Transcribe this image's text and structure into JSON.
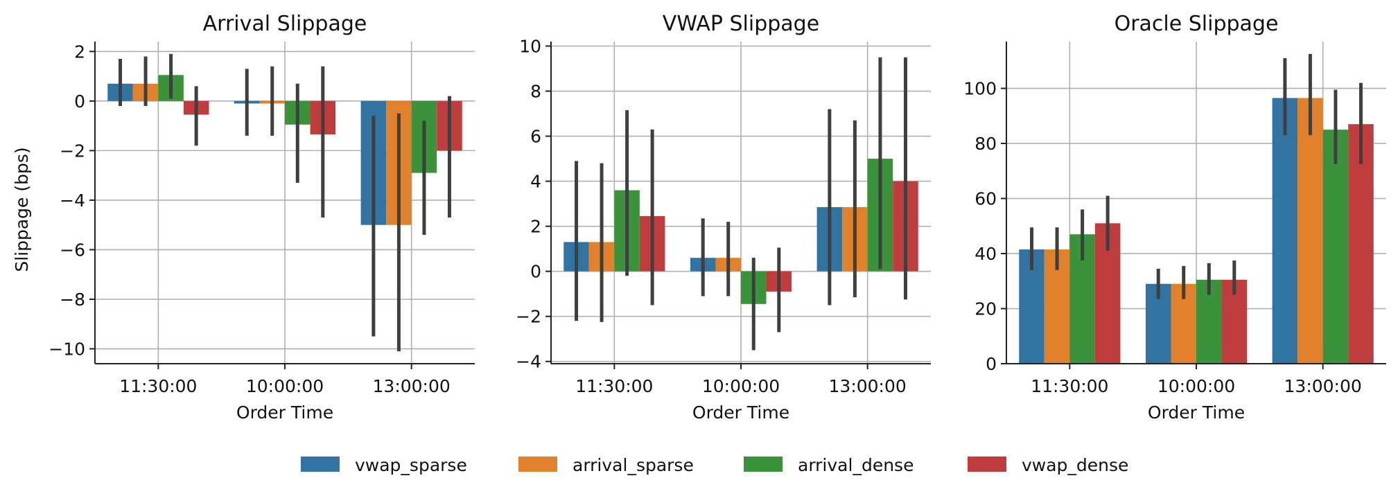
{
  "chart_data": [
    {
      "type": "bar",
      "title": "Arrival Slippage",
      "xlabel": "Order Time",
      "ylabel": "Slippage (bps)",
      "categories": [
        "11:30:00",
        "10:00:00",
        "13:00:00"
      ],
      "ylim": [
        -10.6,
        2.4
      ],
      "yticks": [
        2,
        0,
        -2,
        -4,
        -6,
        -8,
        -10
      ],
      "ytick_labels": [
        "2",
        "0",
        "−2",
        "−4",
        "−6",
        "−8",
        "−10"
      ],
      "grid": true,
      "series": [
        {
          "name": "vwap_sparse",
          "values": [
            0.7,
            -0.1,
            -5.0
          ],
          "err_low": [
            -0.2,
            -1.4,
            -9.5
          ],
          "err_high": [
            1.7,
            1.3,
            -0.6
          ]
        },
        {
          "name": "arrival_sparse",
          "values": [
            0.7,
            -0.1,
            -5.0
          ],
          "err_low": [
            -0.2,
            -1.4,
            -10.1
          ],
          "err_high": [
            1.8,
            1.4,
            -0.5
          ]
        },
        {
          "name": "arrival_dense",
          "values": [
            1.05,
            -0.95,
            -2.9
          ],
          "err_low": [
            0.1,
            -3.3,
            -5.4
          ],
          "err_high": [
            1.9,
            0.7,
            -0.8
          ]
        },
        {
          "name": "vwap_dense",
          "values": [
            -0.55,
            -1.35,
            -2.0
          ],
          "err_low": [
            -1.8,
            -4.7,
            -4.7
          ],
          "err_high": [
            0.6,
            1.4,
            0.2
          ]
        }
      ]
    },
    {
      "type": "bar",
      "title": "VWAP Slippage",
      "xlabel": "Order Time",
      "ylabel": "",
      "categories": [
        "11:30:00",
        "10:00:00",
        "13:00:00"
      ],
      "ylim": [
        -4.1,
        10.2
      ],
      "yticks": [
        10,
        8,
        6,
        4,
        2,
        0,
        -2,
        -4
      ],
      "ytick_labels": [
        "10",
        "8",
        "6",
        "4",
        "2",
        "0",
        "−2",
        "−4"
      ],
      "grid": true,
      "series": [
        {
          "name": "vwap_sparse",
          "values": [
            1.3,
            0.6,
            2.85
          ],
          "err_low": [
            -2.2,
            -1.1,
            -1.5
          ],
          "err_high": [
            4.9,
            2.35,
            7.2
          ]
        },
        {
          "name": "arrival_sparse",
          "values": [
            1.3,
            0.6,
            2.85
          ],
          "err_low": [
            -2.25,
            -1.1,
            -1.15
          ],
          "err_high": [
            4.8,
            2.2,
            6.7
          ]
        },
        {
          "name": "arrival_dense",
          "values": [
            3.6,
            -1.45,
            5.0
          ],
          "err_low": [
            -0.2,
            -3.5,
            0.1
          ],
          "err_high": [
            7.15,
            0.6,
            9.5
          ]
        },
        {
          "name": "vwap_dense",
          "values": [
            2.45,
            -0.9,
            4.0
          ],
          "err_low": [
            -1.5,
            -2.7,
            -1.25
          ],
          "err_high": [
            6.3,
            1.05,
            9.5
          ]
        }
      ]
    },
    {
      "type": "bar",
      "title": "Oracle Slippage",
      "xlabel": "Order Time",
      "ylabel": "",
      "categories": [
        "11:30:00",
        "10:00:00",
        "13:00:00"
      ],
      "ylim": [
        0,
        117
      ],
      "yticks": [
        0,
        20,
        40,
        60,
        80,
        100
      ],
      "ytick_labels": [
        "0",
        "20",
        "40",
        "60",
        "80",
        "100"
      ],
      "grid": true,
      "series": [
        {
          "name": "vwap_sparse",
          "values": [
            41.5,
            29.0,
            96.5
          ],
          "err_low": [
            34.0,
            23.5,
            83.0
          ],
          "err_high": [
            49.5,
            34.5,
            111.0
          ]
        },
        {
          "name": "arrival_sparse",
          "values": [
            41.5,
            29.0,
            96.5
          ],
          "err_low": [
            34.0,
            23.5,
            83.0
          ],
          "err_high": [
            49.5,
            35.5,
            112.5
          ]
        },
        {
          "name": "arrival_dense",
          "values": [
            47.0,
            30.5,
            85.0
          ],
          "err_low": [
            37.5,
            25.0,
            72.5
          ],
          "err_high": [
            56.0,
            36.5,
            99.5
          ]
        },
        {
          "name": "vwap_dense",
          "values": [
            51.0,
            30.5,
            87.0
          ],
          "err_low": [
            41.0,
            25.0,
            72.5
          ],
          "err_high": [
            61.0,
            37.5,
            102.0
          ]
        }
      ]
    }
  ],
  "legend": {
    "placement": "bottom-center",
    "items": [
      {
        "name": "vwap_sparse",
        "color": "#3274a1"
      },
      {
        "name": "arrival_sparse",
        "color": "#e1812c"
      },
      {
        "name": "arrival_dense",
        "color": "#3a923a"
      },
      {
        "name": "vwap_dense",
        "color": "#c03d3e"
      }
    ]
  },
  "colors": {
    "vwap_sparse": "#3274a1",
    "arrival_sparse": "#e1812c",
    "arrival_dense": "#3a923a",
    "vwap_dense": "#c03d3e",
    "errbar": "#3f3f3f",
    "grid": "#b0b0b0",
    "axis": "#222222"
  }
}
